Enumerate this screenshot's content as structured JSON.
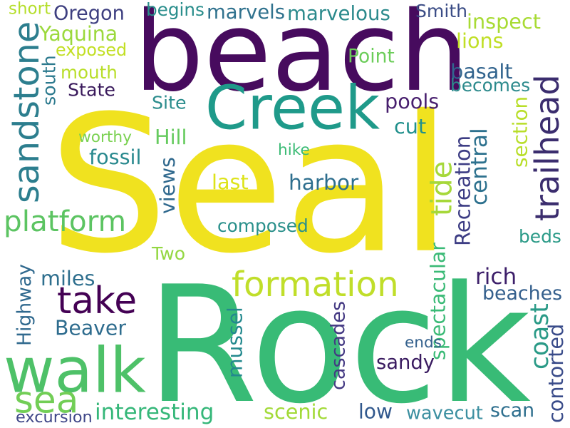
{
  "colors": {
    "background": "#ffffff",
    "dark_purple": "#440154",
    "indigo": "#3e4989",
    "blue": "#31688e",
    "teal": "#26828e",
    "sea_green": "#1f9e89",
    "green": "#35b779",
    "lime": "#6ece58",
    "yellow_green": "#b5de2b",
    "yellow": "#fde725"
  },
  "words": [
    {
      "text": "Seal",
      "color": "#f0e21f"
    },
    {
      "text": "Rock",
      "color": "#38bb76"
    },
    {
      "text": "beach",
      "color": "#470b5e"
    },
    {
      "text": "Creek",
      "color": "#1f9a8a"
    },
    {
      "text": "walk",
      "color": "#4ec168"
    },
    {
      "text": "trailhead",
      "color": "#3b2d6e"
    },
    {
      "text": "take",
      "color": "#440154"
    },
    {
      "text": "formation",
      "color": "#c0de2a"
    },
    {
      "text": "sandstone",
      "color": "#2c7e8e"
    },
    {
      "text": "tide",
      "color": "#a6d83a"
    },
    {
      "text": "platform",
      "color": "#5cc462"
    },
    {
      "text": "sea",
      "color": "#72ce56"
    },
    {
      "text": "Oregon",
      "color": "#3e3f80"
    },
    {
      "text": "Smith",
      "color": "#3b4d86"
    },
    {
      "text": "begins",
      "color": "#2a8e8c"
    },
    {
      "text": "marvels",
      "color": "#30728e"
    },
    {
      "text": "marvelous",
      "color": "#2b8a8c"
    },
    {
      "text": "short",
      "color": "#b5de2b"
    },
    {
      "text": "exposed",
      "color": "#c2df23"
    },
    {
      "text": "Yaquina",
      "color": "#9bd93c"
    },
    {
      "text": "inspect",
      "color": "#a8db34"
    },
    {
      "text": "lions",
      "color": "#c0df25"
    },
    {
      "text": "Point",
      "color": "#6ccd5a"
    },
    {
      "text": "mouth",
      "color": "#b8de29"
    },
    {
      "text": "State",
      "color": "#3a1a5c"
    },
    {
      "text": "south",
      "color": "#2c7a8e"
    },
    {
      "text": "basalt",
      "color": "#32648e"
    },
    {
      "text": "becomes",
      "color": "#2c8a8c"
    },
    {
      "text": "pools",
      "color": "#481f6e"
    },
    {
      "text": "Site",
      "color": "#2a8c8c"
    },
    {
      "text": "section",
      "color": "#b8de29"
    },
    {
      "text": "Hill",
      "color": "#65cb5e"
    },
    {
      "text": "cut",
      "color": "#21908c"
    },
    {
      "text": "worthy",
      "color": "#7ad151"
    },
    {
      "text": "central",
      "color": "#2d718e"
    },
    {
      "text": "fossil",
      "color": "#29898e"
    },
    {
      "text": "hike",
      "color": "#3bbb75"
    },
    {
      "text": "Recreation",
      "color": "#3d3d84"
    },
    {
      "text": "views",
      "color": "#30698e"
    },
    {
      "text": "last",
      "color": "#dde318"
    },
    {
      "text": "harbor",
      "color": "#2d6e8e"
    },
    {
      "text": "composed",
      "color": "#2a908b"
    },
    {
      "text": "beds",
      "color": "#2a9a87"
    },
    {
      "text": "Two",
      "color": "#93d741"
    },
    {
      "text": "spectacular",
      "color": "#3aba76"
    },
    {
      "text": "Highway",
      "color": "#30698e"
    },
    {
      "text": "miles",
      "color": "#2e6f8e"
    },
    {
      "text": "rich",
      "color": "#3d1f6a"
    },
    {
      "text": "beaches",
      "color": "#35608d"
    },
    {
      "text": "mussel",
      "color": "#23898e"
    },
    {
      "text": "cascades",
      "color": "#443983"
    },
    {
      "text": "Beaver",
      "color": "#2e6c8e"
    },
    {
      "text": "coast",
      "color": "#2a9a87"
    },
    {
      "text": "ends",
      "color": "#34618d"
    },
    {
      "text": "sandy",
      "color": "#3a1b60"
    },
    {
      "text": "contorted",
      "color": "#3a4c8a"
    },
    {
      "text": "interesting",
      "color": "#35b779"
    },
    {
      "text": "scenic",
      "color": "#a2da37"
    },
    {
      "text": "low",
      "color": "#31588d"
    },
    {
      "text": "wavecut",
      "color": "#3b8fa0"
    },
    {
      "text": "scan",
      "color": "#2e6f8e"
    },
    {
      "text": "excursion",
      "color": "#3f4788"
    }
  ]
}
